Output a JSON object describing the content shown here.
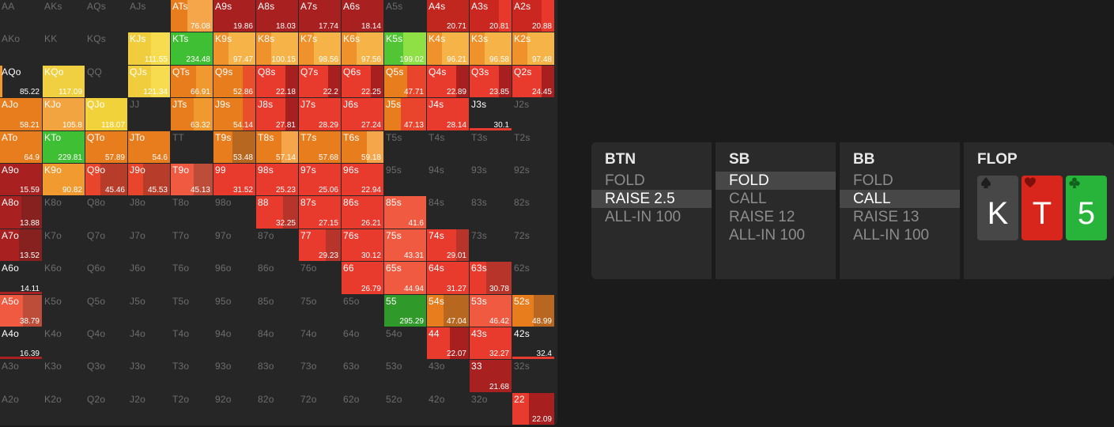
{
  "range_grid": {
    "colors": {
      "raise": "#e8372b",
      "raise_dark": "#a51e1e",
      "call": "#ec7d1d",
      "call_light": "#f6a444",
      "fold_yellow": "#f2d23a",
      "pale_yellow": "#f4cf4c",
      "green": "#3fbf33",
      "green_light": "#8fe045",
      "empty": "#262626"
    },
    "cells": [
      {
        "hand": "AA"
      },
      {
        "hand": "AKs"
      },
      {
        "hand": "AQs"
      },
      {
        "hand": "AJs"
      },
      {
        "hand": "ATs",
        "ev": "76.08",
        "mix": [
          [
            "#e87d1e",
            0.4
          ],
          [
            "#f5a64a",
            0.6
          ]
        ]
      },
      {
        "hand": "A9s",
        "ev": "19.86",
        "mix": [
          [
            "#a8201f",
            1.0
          ]
        ]
      },
      {
        "hand": "A8s",
        "ev": "18.03",
        "mix": [
          [
            "#a8201f",
            1.0
          ]
        ]
      },
      {
        "hand": "A7s",
        "ev": "17.74",
        "mix": [
          [
            "#a8201f",
            1.0
          ]
        ]
      },
      {
        "hand": "A6s",
        "ev": "18.14",
        "mix": [
          [
            "#a8201f",
            1.0
          ]
        ]
      },
      {
        "hand": "A5s"
      },
      {
        "hand": "A4s",
        "ev": "20.71",
        "mix": [
          [
            "#c1261f",
            1.0
          ]
        ]
      },
      {
        "hand": "A3s",
        "ev": "20.81",
        "mix": [
          [
            "#c9271f",
            0.7
          ],
          [
            "#e8382c",
            0.3
          ]
        ]
      },
      {
        "hand": "A2s",
        "ev": "20.88",
        "mix": [
          [
            "#c9271f",
            0.7
          ],
          [
            "#e8382c",
            0.3
          ]
        ]
      },
      {
        "hand": "AKo"
      },
      {
        "hand": "KK"
      },
      {
        "hand": "KQs"
      },
      {
        "hand": "KJs",
        "ev": "111.55",
        "mix": [
          [
            "#f0cd3c",
            0.55
          ],
          [
            "#f7dc50",
            0.45
          ]
        ]
      },
      {
        "hand": "KTs",
        "ev": "234.48",
        "mix": [
          [
            "#3fbf33",
            1.0
          ]
        ]
      },
      {
        "hand": "K9s",
        "ev": "97.47",
        "mix": [
          [
            "#ef922b",
            0.35
          ],
          [
            "#f6b347",
            0.65
          ]
        ]
      },
      {
        "hand": "K8s",
        "ev": "100.15",
        "mix": [
          [
            "#ef922b",
            0.35
          ],
          [
            "#f6b347",
            0.65
          ]
        ]
      },
      {
        "hand": "K7s",
        "ev": "98.56",
        "mix": [
          [
            "#ef922b",
            0.35
          ],
          [
            "#f6b347",
            0.65
          ]
        ]
      },
      {
        "hand": "K6s",
        "ev": "97.56",
        "mix": [
          [
            "#ef922b",
            0.35
          ],
          [
            "#f6b347",
            0.65
          ]
        ]
      },
      {
        "hand": "K5s",
        "ev": "199.02",
        "mix": [
          [
            "#51c534",
            0.45
          ],
          [
            "#8fe045",
            0.55
          ]
        ]
      },
      {
        "hand": "K4s",
        "ev": "96.21",
        "mix": [
          [
            "#ef922b",
            0.35
          ],
          [
            "#f6b347",
            0.65
          ]
        ]
      },
      {
        "hand": "K3s",
        "ev": "96.58",
        "mix": [
          [
            "#ef922b",
            0.35
          ],
          [
            "#f6b347",
            0.65
          ]
        ]
      },
      {
        "hand": "K2s",
        "ev": "97.48",
        "mix": [
          [
            "#ef922b",
            0.35
          ],
          [
            "#f6b347",
            0.65
          ]
        ]
      },
      {
        "hand": "AQo",
        "ev": "85.22",
        "mix": [
          [
            "#f0992e",
            0.05
          ]
        ]
      },
      {
        "hand": "KQo",
        "ev": "117.09",
        "mix": [
          [
            "#f0d040",
            1.0
          ]
        ]
      },
      {
        "hand": "QQ"
      },
      {
        "hand": "QJs",
        "ev": "121.34",
        "mix": [
          [
            "#f0cd3c",
            0.55
          ],
          [
            "#f7dc50",
            0.45
          ]
        ]
      },
      {
        "hand": "QTs",
        "ev": "66.91",
        "mix": [
          [
            "#e87d1e",
            0.6
          ],
          [
            "#f0992e",
            0.4
          ]
        ]
      },
      {
        "hand": "Q9s",
        "ev": "52.86",
        "mix": [
          [
            "#e87d1e",
            0.7
          ],
          [
            "#e8502c",
            0.3
          ]
        ]
      },
      {
        "hand": "Q8s",
        "ev": "22.18",
        "mix": [
          [
            "#e83a2d",
            0.7
          ],
          [
            "#a81f1f",
            0.3
          ]
        ]
      },
      {
        "hand": "Q7s",
        "ev": "22.2",
        "mix": [
          [
            "#e83a2d",
            0.7
          ],
          [
            "#a81f1f",
            0.3
          ]
        ]
      },
      {
        "hand": "Q6s",
        "ev": "22.25",
        "mix": [
          [
            "#e83a2d",
            0.7
          ],
          [
            "#a81f1f",
            0.3
          ]
        ]
      },
      {
        "hand": "Q5s",
        "ev": "47.71",
        "mix": [
          [
            "#e87d1e",
            0.55
          ],
          [
            "#e8452c",
            0.45
          ]
        ]
      },
      {
        "hand": "Q4s",
        "ev": "22.89",
        "mix": [
          [
            "#e83a2d",
            0.7
          ],
          [
            "#a81f1f",
            0.3
          ]
        ]
      },
      {
        "hand": "Q3s",
        "ev": "23.85",
        "mix": [
          [
            "#e83a2d",
            0.7
          ],
          [
            "#a81f1f",
            0.3
          ]
        ]
      },
      {
        "hand": "Q2s",
        "ev": "24.45",
        "mix": [
          [
            "#e83a2d",
            0.7
          ],
          [
            "#a81f1f",
            0.3
          ]
        ]
      },
      {
        "hand": "AJo",
        "ev": "58.21",
        "mix": [
          [
            "#e87d1e",
            1.0
          ]
        ]
      },
      {
        "hand": "KJo",
        "ev": "105.8",
        "mix": [
          [
            "#f2a440",
            1.0
          ]
        ]
      },
      {
        "hand": "QJo",
        "ev": "118.07",
        "mix": [
          [
            "#f2d23a",
            1.0
          ]
        ]
      },
      {
        "hand": "JJ"
      },
      {
        "hand": "JTs",
        "ev": "63.32",
        "mix": [
          [
            "#e87d1e",
            0.55
          ],
          [
            "#f0992e",
            0.45
          ]
        ]
      },
      {
        "hand": "J9s",
        "ev": "54.14",
        "mix": [
          [
            "#e87d1e",
            0.7
          ],
          [
            "#e8502c",
            0.3
          ]
        ]
      },
      {
        "hand": "J8s",
        "ev": "27.81",
        "mix": [
          [
            "#e83a2d",
            0.7
          ],
          [
            "#a81f1f",
            0.3
          ]
        ]
      },
      {
        "hand": "J7s",
        "ev": "28.29",
        "mix": [
          [
            "#e83a2d",
            1.0
          ]
        ]
      },
      {
        "hand": "J6s",
        "ev": "27.24",
        "mix": [
          [
            "#e83a2d",
            1.0
          ]
        ]
      },
      {
        "hand": "J5s",
        "ev": "47.13",
        "mix": [
          [
            "#e87d1e",
            0.4
          ],
          [
            "#e8452c",
            0.6
          ]
        ]
      },
      {
        "hand": "J4s",
        "ev": "28.14",
        "mix": [
          [
            "#e83a2d",
            1.0
          ]
        ]
      },
      {
        "hand": "J3s",
        "ev": "30.1",
        "mix": [
          [
            "#e83a2d",
            0.0
          ]
        ],
        "bar": true
      },
      {
        "hand": "J2s"
      },
      {
        "hand": "ATo",
        "ev": "64.9",
        "mix": [
          [
            "#e87d1e",
            1.0
          ]
        ]
      },
      {
        "hand": "KTo",
        "ev": "229.81",
        "mix": [
          [
            "#3fbf33",
            1.0
          ]
        ]
      },
      {
        "hand": "QTo",
        "ev": "57.89",
        "mix": [
          [
            "#e87d1e",
            1.0
          ]
        ]
      },
      {
        "hand": "JTo",
        "ev": "54.6",
        "mix": [
          [
            "#e87d1e",
            1.0
          ]
        ]
      },
      {
        "hand": "TT"
      },
      {
        "hand": "T9s",
        "ev": "53.48",
        "mix": [
          [
            "#e87d1e",
            0.0
          ]
        ],
        "partial": 0.45
      },
      {
        "hand": "T8s",
        "ev": "57.14",
        "mix": [
          [
            "#e87d1e",
            0.6
          ],
          [
            "#f5a64a",
            0.4
          ]
        ]
      },
      {
        "hand": "T7s",
        "ev": "57.68",
        "mix": [
          [
            "#e87d1e",
            1.0
          ]
        ]
      },
      {
        "hand": "T6s",
        "ev": "59.18",
        "mix": [
          [
            "#e87d1e",
            0.6
          ],
          [
            "#f5a64a",
            0.4
          ]
        ]
      },
      {
        "hand": "T5s"
      },
      {
        "hand": "T4s"
      },
      {
        "hand": "T3s"
      },
      {
        "hand": "T2s"
      },
      {
        "hand": "A9o",
        "ev": "15.59",
        "mix": [
          [
            "#a8201f",
            1.0
          ]
        ]
      },
      {
        "hand": "K9o",
        "ev": "90.82",
        "mix": [
          [
            "#f09a30",
            1.0
          ]
        ]
      },
      {
        "hand": "Q9o",
        "ev": "45.46",
        "mix": [
          [
            "#e8452c",
            0.0
          ]
        ],
        "partial": 0.35
      },
      {
        "hand": "J9o",
        "ev": "45.53",
        "mix": [
          [
            "#e8452c",
            0.0
          ]
        ],
        "partial": 0.35
      },
      {
        "hand": "T9o",
        "ev": "45.13",
        "mix": [
          [
            "#f05a40",
            0.0
          ]
        ],
        "partial": 0.55
      },
      {
        "hand": "99",
        "ev": "31.52",
        "mix": [
          [
            "#e83a2d",
            0.0
          ]
        ]
      },
      {
        "hand": "98s",
        "ev": "25.23",
        "mix": [
          [
            "#e83a2d",
            0.0
          ]
        ]
      },
      {
        "hand": "97s",
        "ev": "25.06",
        "mix": [
          [
            "#e83a2d",
            1.0
          ]
        ]
      },
      {
        "hand": "96s",
        "ev": "22.94",
        "mix": [
          [
            "#e83a2d",
            1.0
          ]
        ]
      },
      {
        "hand": "95s"
      },
      {
        "hand": "94s"
      },
      {
        "hand": "93s"
      },
      {
        "hand": "92s"
      },
      {
        "hand": "A8o",
        "ev": "13.88",
        "mix": [
          [
            "#a8201f",
            0.0
          ]
        ],
        "partial": 0.5
      },
      {
        "hand": "K8o"
      },
      {
        "hand": "Q8o"
      },
      {
        "hand": "J8o"
      },
      {
        "hand": "T8o"
      },
      {
        "hand": "98o"
      },
      {
        "hand": "88",
        "ev": "32.25",
        "mix": [
          [
            "#e83a2d",
            0.0
          ]
        ],
        "partial": 0.65
      },
      {
        "hand": "87s",
        "ev": "27.15",
        "mix": [
          [
            "#e83a2d",
            1.0
          ]
        ]
      },
      {
        "hand": "86s",
        "ev": "26.21",
        "mix": [
          [
            "#e83a2d",
            1.0
          ]
        ]
      },
      {
        "hand": "85s",
        "ev": "41.6",
        "mix": [
          [
            "#f05a40",
            1.0
          ]
        ]
      },
      {
        "hand": "84s"
      },
      {
        "hand": "83s"
      },
      {
        "hand": "82s"
      },
      {
        "hand": "A7o",
        "ev": "13.52",
        "mix": [
          [
            "#a8201f",
            0.0
          ]
        ],
        "partial": 0.45
      },
      {
        "hand": "K7o"
      },
      {
        "hand": "Q7o"
      },
      {
        "hand": "J7o"
      },
      {
        "hand": "T7o"
      },
      {
        "hand": "97o"
      },
      {
        "hand": "87o"
      },
      {
        "hand": "77",
        "ev": "29.23",
        "mix": [
          [
            "#e83a2d",
            0.0
          ]
        ],
        "partial": 0.65
      },
      {
        "hand": "76s",
        "ev": "30.12",
        "mix": [
          [
            "#e83a2d",
            1.0
          ]
        ]
      },
      {
        "hand": "75s",
        "ev": "43.31",
        "mix": [
          [
            "#f05a40",
            1.0
          ]
        ]
      },
      {
        "hand": "74s",
        "ev": "29.01",
        "mix": [
          [
            "#e83a2d",
            0.0
          ]
        ],
        "partial": 0.7
      },
      {
        "hand": "73s"
      },
      {
        "hand": "72s"
      },
      {
        "hand": "A6o",
        "ev": "14.11",
        "mix": [
          [
            "#a8201f",
            0.0
          ]
        ],
        "bar": true
      },
      {
        "hand": "K6o"
      },
      {
        "hand": "Q6o"
      },
      {
        "hand": "J6o"
      },
      {
        "hand": "T6o"
      },
      {
        "hand": "96o"
      },
      {
        "hand": "86o"
      },
      {
        "hand": "76o"
      },
      {
        "hand": "66",
        "ev": "26.79",
        "mix": [
          [
            "#e83a2d",
            1.0
          ]
        ]
      },
      {
        "hand": "65s",
        "ev": "44.94",
        "mix": [
          [
            "#f05a40",
            1.0
          ]
        ]
      },
      {
        "hand": "64s",
        "ev": "31.27",
        "mix": [
          [
            "#e83a2d",
            1.0
          ]
        ]
      },
      {
        "hand": "63s",
        "ev": "30.78",
        "mix": [
          [
            "#e83a2d",
            0.0
          ]
        ],
        "partial": 0.4
      },
      {
        "hand": "62s"
      },
      {
        "hand": "A5o",
        "ev": "38.79",
        "mix": [
          [
            "#f05a40",
            0.0
          ]
        ],
        "partial": 0.55
      },
      {
        "hand": "K5o"
      },
      {
        "hand": "Q5o"
      },
      {
        "hand": "J5o"
      },
      {
        "hand": "T5o"
      },
      {
        "hand": "95o"
      },
      {
        "hand": "85o"
      },
      {
        "hand": "75o"
      },
      {
        "hand": "65o"
      },
      {
        "hand": "55",
        "ev": "295.29",
        "mix": [
          [
            "#2f9a2a",
            1.0
          ]
        ]
      },
      {
        "hand": "54s",
        "ev": "47.04",
        "mix": [
          [
            "#e87d1e",
            0.0
          ]
        ],
        "partial": 0.4
      },
      {
        "hand": "53s",
        "ev": "46.42",
        "mix": [
          [
            "#f05a40",
            1.0
          ]
        ]
      },
      {
        "hand": "52s",
        "ev": "48.99",
        "mix": [
          [
            "#e87d1e",
            0.0
          ]
        ],
        "partial": 0.5
      },
      {
        "hand": "A4o",
        "ev": "16.39",
        "mix": [
          [
            "#a8201f",
            0.0
          ]
        ],
        "bar": true
      },
      {
        "hand": "K4o"
      },
      {
        "hand": "Q4o"
      },
      {
        "hand": "J4o"
      },
      {
        "hand": "T4o"
      },
      {
        "hand": "94o"
      },
      {
        "hand": "84o"
      },
      {
        "hand": "74o"
      },
      {
        "hand": "64o"
      },
      {
        "hand": "54o"
      },
      {
        "hand": "44",
        "ev": "22.07",
        "mix": [
          [
            "#e83a2d",
            0.55
          ],
          [
            "#a81f1f",
            0.45
          ]
        ]
      },
      {
        "hand": "43s",
        "ev": "32.27",
        "mix": [
          [
            "#e83a2d",
            1.0
          ]
        ]
      },
      {
        "hand": "42s",
        "ev": "32.4",
        "mix": [
          [
            "#e83a2d",
            0.0
          ]
        ],
        "bar": true
      },
      {
        "hand": "A3o"
      },
      {
        "hand": "K3o"
      },
      {
        "hand": "Q3o"
      },
      {
        "hand": "J3o"
      },
      {
        "hand": "T3o"
      },
      {
        "hand": "93o"
      },
      {
        "hand": "83o"
      },
      {
        "hand": "73o"
      },
      {
        "hand": "63o"
      },
      {
        "hand": "53o"
      },
      {
        "hand": "43o"
      },
      {
        "hand": "33",
        "ev": "21.68",
        "mix": [
          [
            "#a8201f",
            1.0
          ]
        ]
      },
      {
        "hand": "32s"
      },
      {
        "hand": "A2o"
      },
      {
        "hand": "K2o"
      },
      {
        "hand": "Q2o"
      },
      {
        "hand": "J2o"
      },
      {
        "hand": "T2o"
      },
      {
        "hand": "92o"
      },
      {
        "hand": "82o"
      },
      {
        "hand": "72o"
      },
      {
        "hand": "62o"
      },
      {
        "hand": "52o"
      },
      {
        "hand": "42o"
      },
      {
        "hand": "32o"
      },
      {
        "hand": "22",
        "ev": "22.09",
        "mix": [
          [
            "#e83a2d",
            0.4
          ],
          [
            "#a81f1f",
            0.6
          ]
        ]
      }
    ]
  },
  "players": [
    {
      "id": "btn",
      "title": "BTN",
      "actions": [
        "FOLD",
        "RAISE 2.5",
        "ALL-IN 100"
      ],
      "selected": 1
    },
    {
      "id": "sb",
      "title": "SB",
      "actions": [
        "FOLD",
        "CALL",
        "RAISE 12",
        "ALL-IN 100"
      ],
      "selected": 0
    },
    {
      "id": "bb",
      "title": "BB",
      "actions": [
        "FOLD",
        "CALL",
        "RAISE 13",
        "ALL-IN 100"
      ],
      "selected": 1
    }
  ],
  "flop": {
    "title": "FLOP",
    "cards": [
      {
        "rank": "K",
        "suit": "spade-icon",
        "color": "#474747"
      },
      {
        "rank": "T",
        "suit": "heart-icon",
        "color": "#d8261c"
      },
      {
        "rank": "5",
        "suit": "club-icon",
        "color": "#28b33a"
      }
    ]
  }
}
